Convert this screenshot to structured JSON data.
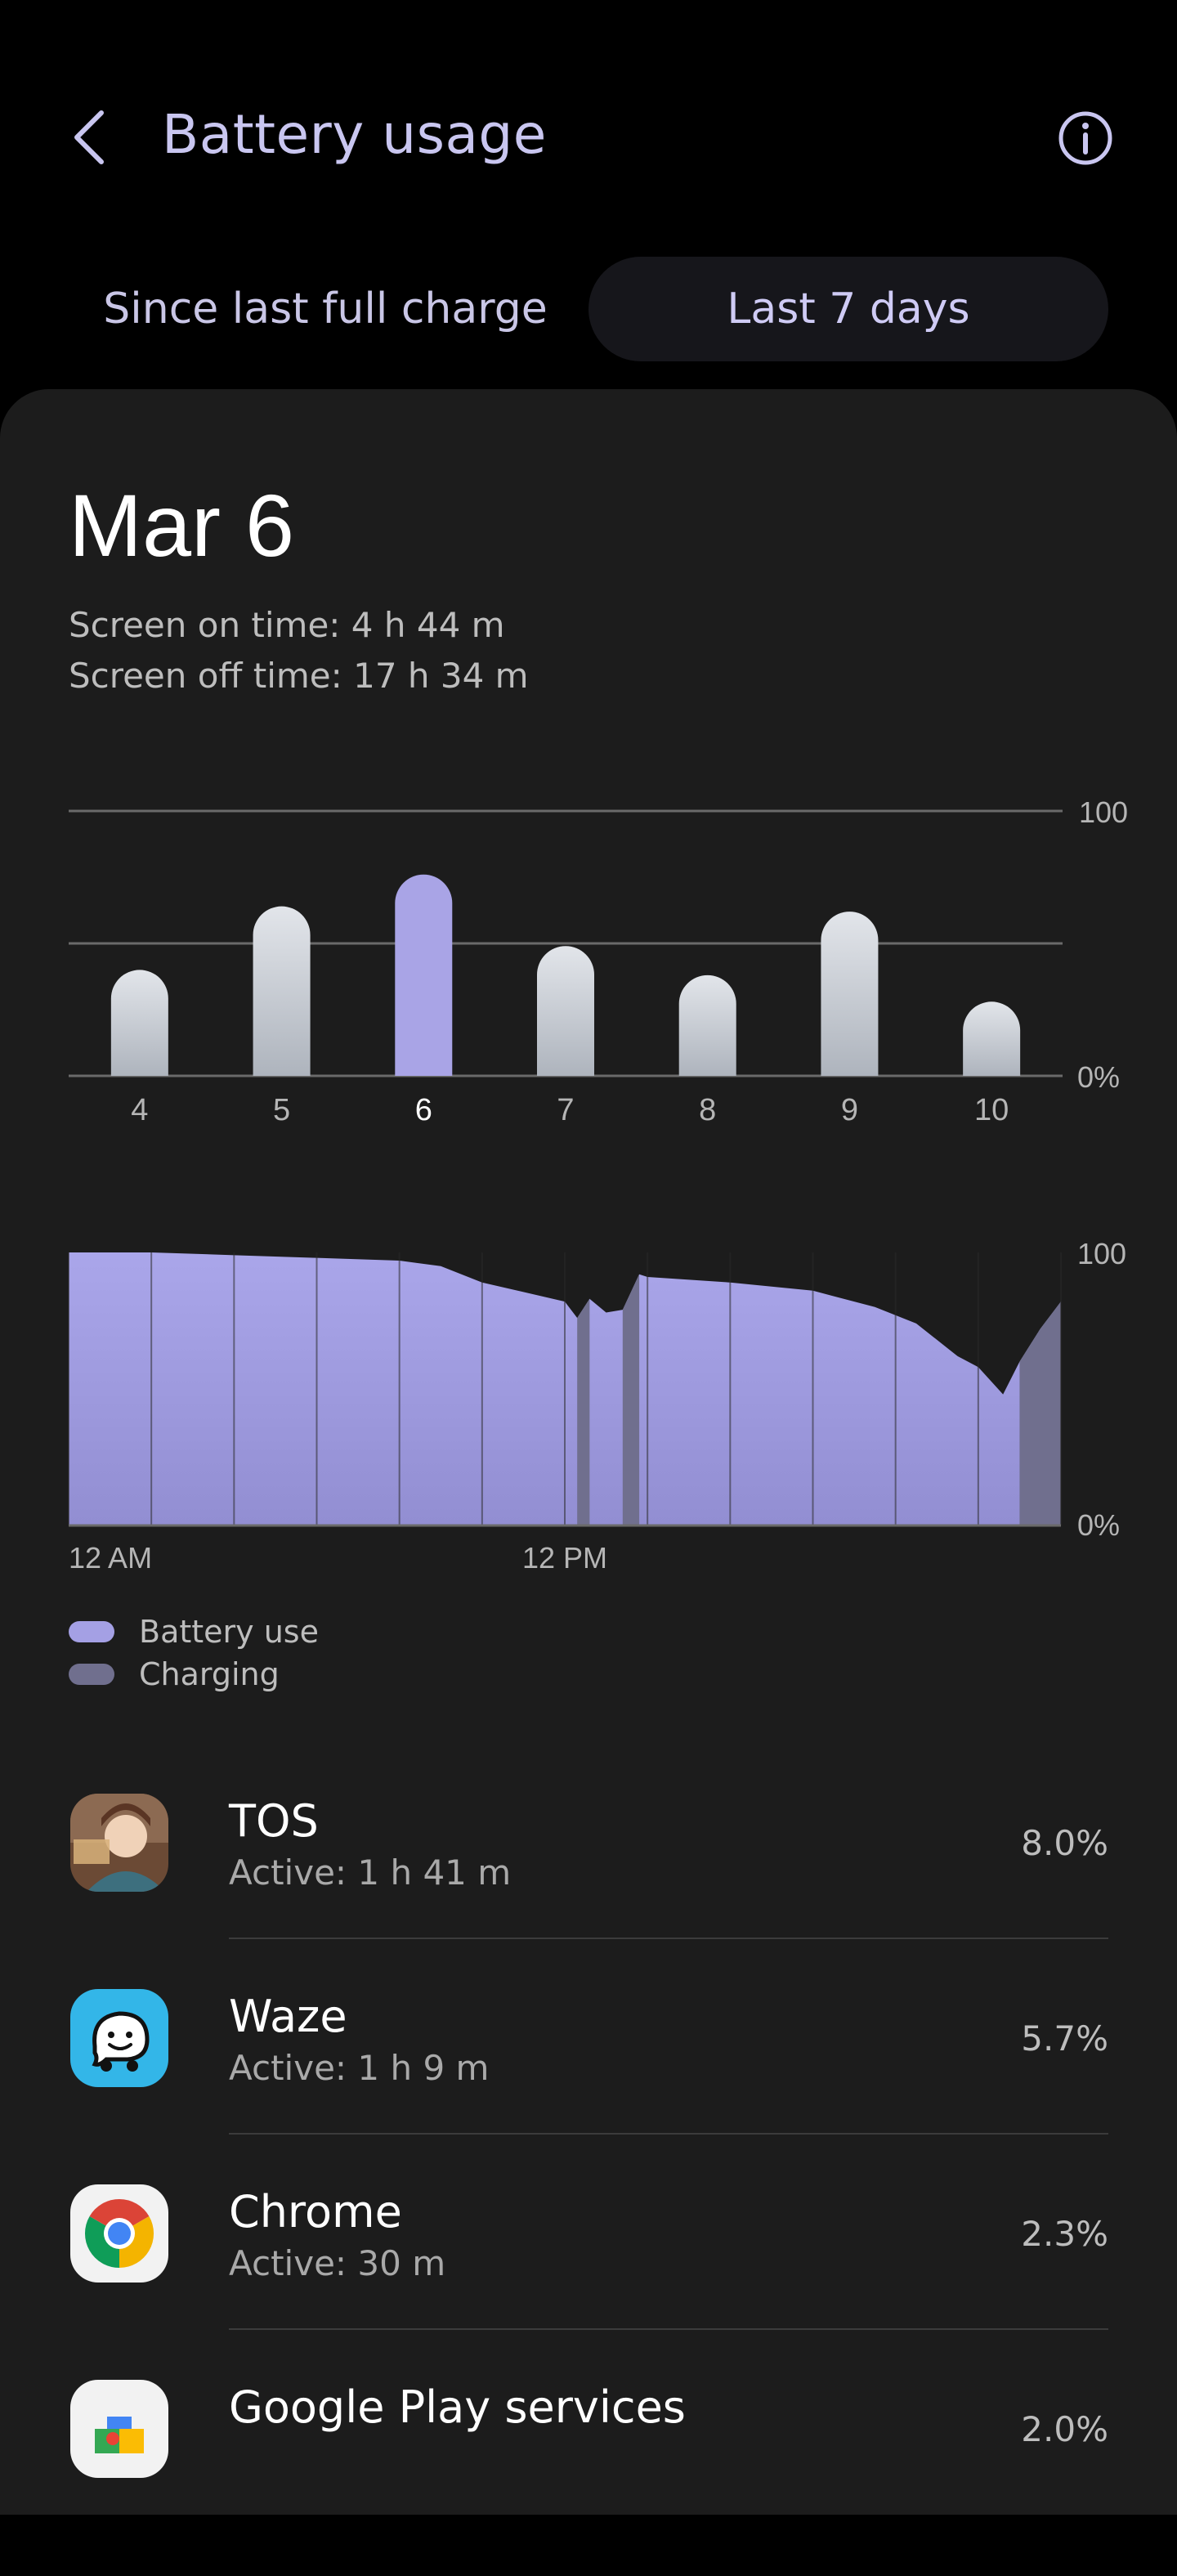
{
  "header": {
    "title": "Battery usage",
    "tabs": [
      "Since last full charge",
      "Last 7 days"
    ],
    "selected_tab": "Last 7 days"
  },
  "summary": {
    "date": "Mar 6",
    "screen_on": "Screen on time: 4 h 44 m",
    "screen_off": "Screen off time: 17 h 34 m"
  },
  "chart_data": [
    {
      "type": "bar",
      "categories": [
        "4",
        "5",
        "6",
        "7",
        "8",
        "9",
        "10"
      ],
      "values": [
        40,
        64,
        76,
        49,
        38,
        62,
        28
      ],
      "selected": "6",
      "ylim": [
        0,
        100
      ],
      "ytick_labels": [
        "100",
        "0%"
      ],
      "grid": true,
      "colors": {
        "bar": "#c4cad3",
        "selected": "#a9a4e6",
        "grid": "#6a6a6a"
      }
    },
    {
      "type": "area",
      "xlabels": [
        "12 AM",
        "12 PM"
      ],
      "ylim": [
        0,
        100
      ],
      "ytick_labels": [
        "100",
        "0%"
      ],
      "x_hours": [
        0,
        2,
        4,
        6,
        8,
        9,
        10,
        12,
        12.3,
        12.6,
        13,
        13.4,
        13.8,
        14,
        16,
        18,
        19.5,
        20.5,
        21.5,
        22,
        22.6,
        23,
        23.5,
        24
      ],
      "y_percent": [
        100,
        100,
        99,
        98,
        97,
        95,
        89,
        82,
        76,
        83,
        78,
        79,
        92,
        91,
        89,
        86,
        80,
        74,
        62,
        58,
        48,
        60,
        72,
        82
      ],
      "charging_periods": [
        [
          12.3,
          12.6
        ],
        [
          13.4,
          13.8
        ],
        [
          23.0,
          24.0
        ]
      ],
      "colors": {
        "battery_use": "#a4a0e4",
        "charging": "#706f8e"
      }
    }
  ],
  "legend": {
    "battery_use": "Battery use",
    "charging": "Charging"
  },
  "apps": [
    {
      "name": "TOS",
      "active": "Active: 1 h 41 m",
      "percent": "8.0%",
      "icon": "tos-app-icon"
    },
    {
      "name": "Waze",
      "active": "Active: 1 h 9 m",
      "percent": "5.7%",
      "icon": "waze-icon"
    },
    {
      "name": "Chrome",
      "active": "Active: 30 m",
      "percent": "2.3%",
      "icon": "chrome-icon"
    },
    {
      "name": "Google Play services",
      "active": "",
      "percent": "2.0%",
      "icon": "google-play-services-icon"
    }
  ]
}
